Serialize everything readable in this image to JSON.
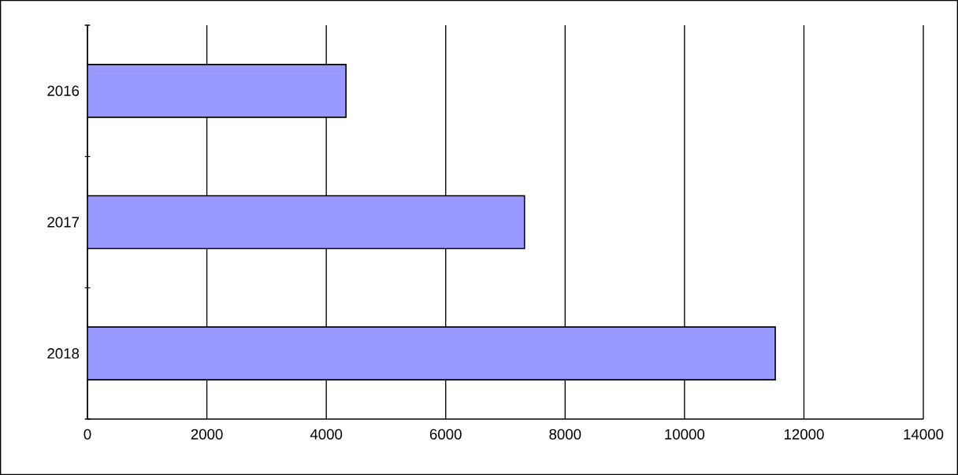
{
  "chart_data": {
    "type": "bar",
    "orientation": "horizontal",
    "categories": [
      "2016",
      "2017",
      "2018"
    ],
    "values": [
      4330,
      7320,
      11520
    ],
    "color": "#9999ff",
    "xlim": [
      0,
      14000
    ],
    "xticks": [
      0,
      2000,
      4000,
      6000,
      8000,
      10000,
      12000,
      14000
    ],
    "grid": "x"
  }
}
